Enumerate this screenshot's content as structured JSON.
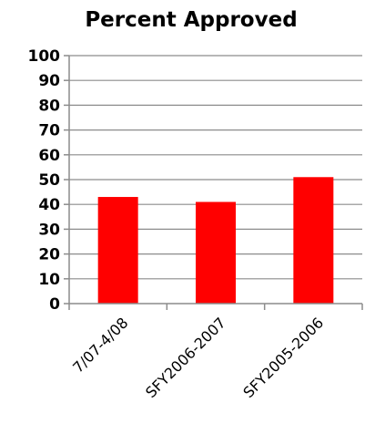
{
  "chart_data": {
    "type": "bar",
    "title": "Percent Approved",
    "categories": [
      "7/07-4/08",
      "SFY2006-2007",
      "SFY2005-2006"
    ],
    "values": [
      43,
      41,
      51
    ],
    "ylim": [
      0,
      100
    ],
    "yticks": [
      0,
      10,
      20,
      30,
      40,
      50,
      60,
      70,
      80,
      90,
      100
    ],
    "xlabel": "",
    "ylabel": "",
    "grid": true,
    "bar_color": "#ff0000",
    "legend": "none"
  }
}
